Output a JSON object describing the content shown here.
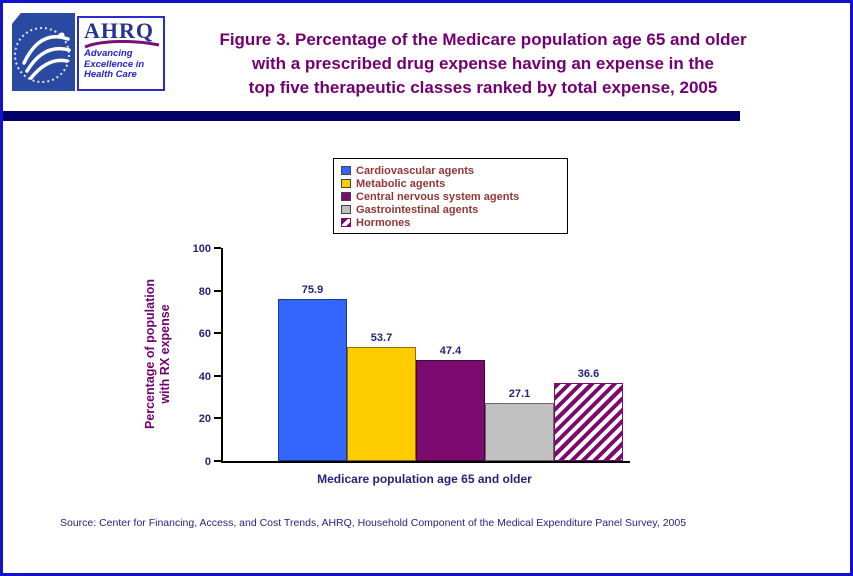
{
  "colors": {
    "page_border": "#1212CE",
    "header_rule": "#000066",
    "title_text": "#730073",
    "axis_text": "#26237D",
    "legend_text": "#943634",
    "source_text": "#26237D",
    "hhs_logo_blue": "#2A4AA2",
    "ahrq_logo_blue": "#2B2BCF",
    "ahrq_swoosh_purple": "#7A0F7A"
  },
  "header": {
    "title_lines": [
      "Figure 3. Percentage of the Medicare population age 65 and older",
      "with a prescribed drug expense having an expense in the",
      "top five therapeutic classes ranked by total expense, 2005"
    ]
  },
  "logos": {
    "ahrq": {
      "acronym": "AHRQ",
      "tagline_lines": [
        "Advancing",
        "Excellence in",
        "Health Care"
      ]
    }
  },
  "chart_data": {
    "type": "bar",
    "title": "Figure 3. Percentage of the Medicare population age 65 and older with a prescribed drug expense having an expense in the top five therapeutic classes ranked by total expense, 2005",
    "categories": [
      "Cardiovascular agents",
      "Metabolic agents",
      "Central nervous system agents",
      "Gastrointestinal agents",
      "Hormones"
    ],
    "values": [
      75.9,
      53.7,
      47.4,
      27.1,
      36.6
    ],
    "bar_colors": [
      "#3366FF",
      "#FFCC00",
      "#7D0A6E",
      "#C0C0C0",
      "hatch:#7D0A6E"
    ],
    "xlabel": "Medicare population age 65 and older",
    "ylabel_lines": [
      "Percentage of population",
      "with RX expense"
    ],
    "ylim": [
      0,
      100
    ],
    "yticks": [
      0,
      20,
      40,
      60,
      80,
      100
    ],
    "legend_position": "top-center",
    "grid": false
  },
  "footer": {
    "source": "Source: Center for Financing, Access, and Cost Trends, AHRQ, Household Component of the Medical Expenditure Panel Survey, 2005"
  }
}
